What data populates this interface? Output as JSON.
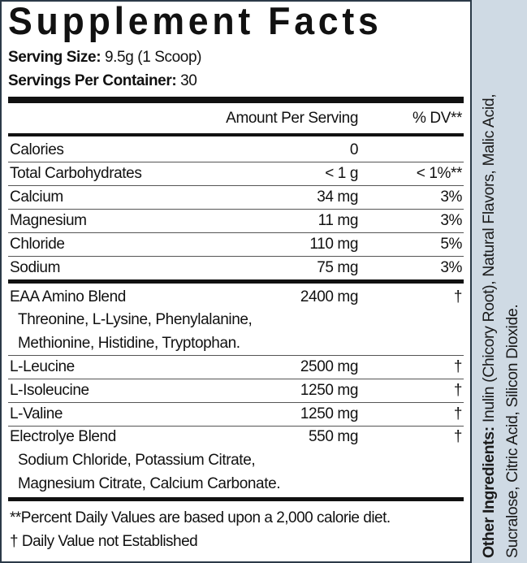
{
  "title": "Supplement Facts",
  "serving_size": {
    "label": "Serving Size:",
    "value": "9.5g (1 Scoop)"
  },
  "servings_per_container": {
    "label": "Servings Per Container:",
    "value": "30"
  },
  "header": {
    "amount": "Amount Per Serving",
    "dv": "% DV**"
  },
  "rows1": [
    {
      "name": "Calories",
      "amount": "0",
      "dv": ""
    },
    {
      "name": "Total Carbohydrates",
      "amount": "< 1 g",
      "dv": "< 1%**"
    },
    {
      "name": "Calcium",
      "amount": "34 mg",
      "dv": "3%"
    },
    {
      "name": "Magnesium",
      "amount": "11 mg",
      "dv": "3%"
    },
    {
      "name": "Chloride",
      "amount": "110 mg",
      "dv": "5%"
    },
    {
      "name": "Sodium",
      "amount": "75 mg",
      "dv": "3%"
    }
  ],
  "eaa": {
    "name": "EAA Amino Blend",
    "amount": "2400 mg",
    "dv": "†",
    "sub": [
      "Threonine, L-Lysine, Phenylalanine,",
      "Methionine, Histidine, Tryptophan."
    ]
  },
  "rows2": [
    {
      "name": "L-Leucine",
      "amount": "2500 mg",
      "dv": "†"
    },
    {
      "name": "L-Isoleucine",
      "amount": "1250 mg",
      "dv": "†"
    },
    {
      "name": "L-Valine",
      "amount": "1250 mg",
      "dv": "†"
    }
  ],
  "electrolyte": {
    "name": "Electrolye Blend",
    "amount": "550 mg",
    "dv": "†",
    "sub": [
      "Sodium Chloride, Potassium Citrate,",
      "Magnesium Citrate, Calcium Carbonate."
    ]
  },
  "footnotes": [
    "**Percent Daily Values are based upon a 2,000 calorie diet.",
    "† Daily Value not Established"
  ],
  "other_ingredients": {
    "label": "Other Ingredients:",
    "text": "Inulin (Chicory Root), Natural Flavors, Malic Acid, Sucralose, Citric Acid, Silicon Dioxide."
  },
  "colors": {
    "side_panel": "#cfdae4",
    "border": "#2b3a48"
  }
}
